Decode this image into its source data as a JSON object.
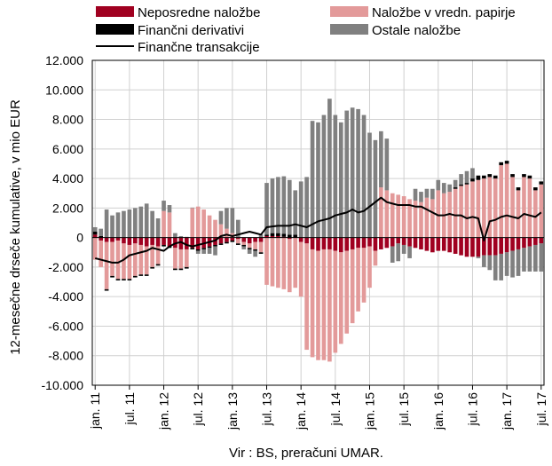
{
  "chart_data": {
    "type": "bar",
    "ylabel": "12-mesečne drseče kumulative, v mio EUR",
    "source": "Vir : BS, preračuni UMAR.",
    "ylim": [
      -10000,
      12000
    ],
    "yticks": [
      12000,
      10000,
      8000,
      6000,
      4000,
      2000,
      0,
      -2000,
      -4000,
      -6000,
      -8000,
      -10000
    ],
    "ytick_labels": [
      "12.000",
      "10.000",
      "8.000",
      "6.000",
      "4.000",
      "2.000",
      "0",
      "-2.000",
      "-4.000",
      "-6.000",
      "-8.000",
      "-10.000"
    ],
    "xtick_labels": [
      "jan. 11",
      "jul. 11",
      "jan. 12",
      "jul. 12",
      "jan. 13",
      "jul. 13",
      "jan. 14",
      "jul. 14",
      "jan. 15",
      "jul. 15",
      "jan. 16",
      "jul. 16",
      "jan. 17",
      "jul. 17"
    ],
    "xtick_month_index": [
      0,
      6,
      12,
      18,
      24,
      30,
      36,
      42,
      48,
      54,
      60,
      66,
      72,
      78
    ],
    "months": 79,
    "legend": [
      {
        "key": "direct",
        "label": "Neposredne naložbe",
        "color": "#a00020",
        "kind": "box"
      },
      {
        "key": "portfolio",
        "label": "Naložbe v vredn. papirje",
        "color": "#e39a9a",
        "kind": "box"
      },
      {
        "key": "derivatives",
        "label": "Finančni derivativi",
        "color": "#000000",
        "kind": "box"
      },
      {
        "key": "other",
        "label": "Ostale naložbe",
        "color": "#808080",
        "kind": "box"
      },
      {
        "key": "total",
        "label": "Finančne transakcije",
        "color": "#000000",
        "kind": "line"
      }
    ],
    "series": [
      {
        "key": "direct",
        "name": "Neposredne naložbe",
        "color": "#a00020",
        "values": [
          200,
          -200,
          -300,
          -300,
          -200,
          -400,
          -500,
          -400,
          -500,
          -600,
          -500,
          -600,
          -500,
          -600,
          -700,
          -800,
          -800,
          -700,
          -800,
          -700,
          -600,
          -500,
          -400,
          -300,
          -200,
          -100,
          -300,
          -400,
          -300,
          -300,
          100,
          100,
          100,
          50,
          -100,
          0,
          -300,
          -400,
          -800,
          -900,
          -800,
          -800,
          -900,
          -1000,
          -900,
          -800,
          -700,
          -700,
          -600,
          -900,
          -800,
          -700,
          -600,
          -400,
          -500,
          -600,
          -700,
          -800,
          -900,
          -1000,
          -900,
          -900,
          -1000,
          -1100,
          -1200,
          -1300,
          -1300,
          -1300,
          -1200,
          -1200,
          -1200,
          -1100,
          -1000,
          -900,
          -800,
          -700,
          -600,
          -500,
          -400
        ]
      },
      {
        "key": "portfolio",
        "name": "Naložbe v vredn. papirje",
        "color": "#e39a9a",
        "values": [
          -1500,
          -1800,
          -3200,
          -2300,
          -2600,
          -2400,
          -2300,
          -2200,
          -2000,
          -1900,
          -1500,
          -1200,
          1800,
          1700,
          -1400,
          -1300,
          -1200,
          2000,
          2100,
          1900,
          1500,
          1200,
          900,
          600,
          300,
          -300,
          -200,
          -300,
          -500,
          -700,
          -3200,
          -3300,
          -3400,
          -3500,
          -3600,
          -3400,
          -3700,
          -7200,
          -7300,
          -7400,
          -7500,
          -7600,
          -6900,
          -6200,
          -5600,
          -5000,
          -4300,
          -3700,
          -2800,
          -1000,
          3400,
          3200,
          3000,
          2900,
          2800,
          2600,
          2500,
          2400,
          2700,
          2600,
          3200,
          3000,
          3100,
          3300,
          3500,
          3600,
          3800,
          3900,
          4000,
          4100,
          4000,
          4900,
          5000,
          4100,
          3200,
          4100,
          4000,
          3200,
          3600
        ]
      },
      {
        "key": "derivatives",
        "name": "Finančni derivativi",
        "color": "#000000",
        "values": [
          200,
          100,
          -100,
          -100,
          -100,
          -100,
          -100,
          -100,
          -100,
          -100,
          -100,
          -100,
          -100,
          -100,
          -100,
          -100,
          -100,
          -100,
          -100,
          -100,
          -100,
          -100,
          -100,
          -100,
          -100,
          -100,
          -100,
          -100,
          -100,
          -100,
          100,
          200,
          200,
          200,
          200,
          200,
          0,
          0,
          0,
          0,
          0,
          0,
          0,
          0,
          0,
          0,
          0,
          0,
          0,
          0,
          0,
          0,
          0,
          0,
          0,
          0,
          0,
          0,
          0,
          0,
          0,
          0,
          0,
          100,
          100,
          100,
          200,
          300,
          200,
          200,
          200,
          200,
          200,
          200,
          200,
          200,
          200,
          200,
          200
        ]
      },
      {
        "key": "other",
        "name": "Ostale naložbe",
        "color": "#808080",
        "values": [
          300,
          500,
          1900,
          1500,
          1700,
          1800,
          1900,
          2000,
          2100,
          2300,
          1800,
          1300,
          700,
          500,
          300,
          100,
          50,
          30,
          -200,
          -300,
          -400,
          -600,
          900,
          1400,
          1700,
          1200,
          -200,
          -300,
          -400,
          200,
          3500,
          3700,
          3800,
          3900,
          3700,
          3000,
          3800,
          4100,
          7900,
          7800,
          8300,
          9400,
          8300,
          7800,
          8600,
          8800,
          8700,
          8300,
          7100,
          6600,
          3800,
          3500,
          -1100,
          -1200,
          -600,
          -800,
          800,
          700,
          600,
          700,
          700,
          700,
          500,
          500,
          700,
          800,
          700,
          -100,
          -800,
          -1000,
          -1700,
          -1800,
          -1600,
          -1800,
          -1800,
          -1600,
          -1700,
          -1800,
          -1900
        ]
      },
      {
        "key": "total",
        "name": "Finančne transakcije",
        "color": "#000000",
        "values": [
          -1400,
          -1500,
          -1600,
          -1700,
          -1700,
          -1500,
          -1200,
          -1100,
          -1000,
          -900,
          -700,
          -800,
          -900,
          -600,
          -400,
          -300,
          -500,
          -600,
          -500,
          -400,
          -300,
          -200,
          100,
          200,
          100,
          200,
          300,
          400,
          300,
          200,
          700,
          750,
          800,
          800,
          800,
          900,
          800,
          700,
          900,
          1100,
          1200,
          1300,
          1500,
          1600,
          1700,
          1900,
          1700,
          1800,
          2100,
          2400,
          2700,
          2400,
          2300,
          2200,
          2200,
          2200,
          2100,
          2100,
          1900,
          1700,
          1500,
          1500,
          1600,
          1500,
          1500,
          1300,
          1400,
          1300,
          -200,
          1100,
          1200,
          1400,
          1500,
          1400,
          1300,
          1600,
          1500,
          1400,
          1700
        ]
      }
    ]
  }
}
